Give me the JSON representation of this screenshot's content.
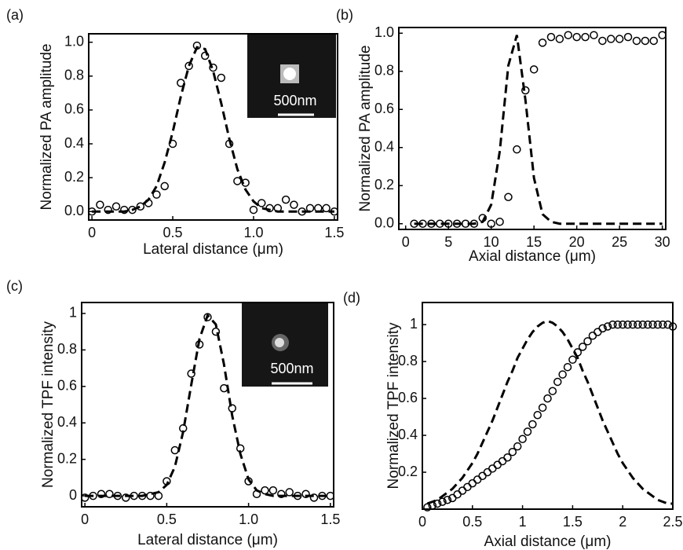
{
  "chart_data": [
    {
      "type": "scatter",
      "panel_label": "(a)",
      "xlabel": "Lateral distance (μm)",
      "ylabel": "Normalized PA amplitude",
      "inset_label": "500nm",
      "xlim": [
        -0.02,
        1.52
      ],
      "ylim": [
        -0.05,
        1.05
      ],
      "xticks": [
        0,
        0.5,
        {
          "value": 1,
          "label": "1.0"
        },
        1.5
      ],
      "yticks": [
        {
          "value": 0,
          "label": "0.0"
        },
        0.2,
        0.4,
        0.6,
        0.8,
        {
          "value": 1,
          "label": "1.0"
        }
      ],
      "x": [
        0,
        0.05,
        0.1,
        0.15,
        0.2,
        0.25,
        0.3,
        0.35,
        0.4,
        0.45,
        0.5,
        0.55,
        0.6,
        0.65,
        0.7,
        0.75,
        0.8,
        0.85,
        0.9,
        0.95,
        1.0,
        1.05,
        1.1,
        1.15,
        1.2,
        1.25,
        1.3,
        1.35,
        1.4,
        1.45,
        1.5
      ],
      "series": [
        {
          "kind": "markers",
          "color": "#000000",
          "values": [
            0.0,
            0.04,
            0.01,
            0.03,
            0.01,
            0.01,
            0.03,
            0.05,
            0.1,
            0.15,
            0.4,
            0.76,
            0.86,
            0.98,
            0.92,
            0.85,
            0.79,
            0.4,
            0.18,
            0.17,
            0.01,
            0.05,
            0.02,
            0.02,
            0.07,
            0.04,
            0.0,
            0.02,
            0.02,
            0.02,
            0.0
          ]
        },
        {
          "kind": "dashed",
          "color": "#000000",
          "values": [
            0,
            0,
            0,
            0,
            0,
            0.01,
            0.03,
            0.07,
            0.15,
            0.29,
            0.47,
            0.68,
            0.86,
            0.97,
            0.96,
            0.83,
            0.64,
            0.43,
            0.25,
            0.13,
            0.06,
            0.02,
            0.01,
            0,
            0,
            0,
            0,
            0,
            0,
            0,
            0
          ]
        }
      ]
    },
    {
      "type": "scatter",
      "panel_label": "(b)",
      "xlabel": "Axial distance (μm)",
      "ylabel": "Normalized PA amplitude",
      "xlim": [
        -0.8,
        30.4
      ],
      "ylim": [
        -0.03,
        1.03
      ],
      "xticks": [
        0,
        5,
        10,
        15,
        20,
        25,
        30
      ],
      "yticks": [
        {
          "value": 0,
          "label": "0.0"
        },
        0.2,
        0.4,
        0.6,
        0.8,
        {
          "value": 1,
          "label": "1.0"
        }
      ],
      "x": [
        1,
        2,
        3,
        4,
        5,
        6,
        7,
        8,
        9,
        10,
        11,
        12,
        13,
        14,
        15,
        16,
        17,
        18,
        19,
        20,
        21,
        22,
        23,
        24,
        25,
        26,
        27,
        28,
        29,
        30
      ],
      "series": [
        {
          "kind": "markers",
          "color": "#000000",
          "values": [
            0,
            0,
            0,
            0,
            0,
            0,
            0,
            0,
            0.03,
            0,
            0.01,
            0.14,
            0.39,
            0.7,
            0.81,
            0.95,
            0.98,
            0.97,
            0.99,
            0.98,
            0.98,
            0.99,
            0.96,
            0.97,
            0.97,
            0.98,
            0.96,
            0.96,
            0.96,
            0.99
          ]
        },
        {
          "kind": "dashed",
          "color": "#000000",
          "values": [
            0,
            0,
            0,
            0,
            0,
            0,
            0,
            0,
            0.01,
            0.1,
            0.38,
            0.83,
            0.99,
            0.65,
            0.24,
            0.05,
            0.01,
            0,
            0,
            0,
            0,
            0,
            0,
            0,
            0,
            0,
            0,
            0,
            0,
            0
          ]
        }
      ]
    },
    {
      "type": "scatter",
      "panel_label": "(c)",
      "xlabel": "Lateral distance (μm)",
      "ylabel": "Normalized TPF intensity",
      "inset_label": "500nm",
      "xlim": [
        -0.02,
        1.52
      ],
      "ylim": [
        -0.06,
        1.06
      ],
      "xticks": [
        0,
        0.5,
        {
          "value": 1,
          "label": "1.0"
        },
        1.5
      ],
      "yticks": [
        0,
        0.2,
        0.4,
        0.6,
        0.8,
        1
      ],
      "x": [
        0,
        0.05,
        0.1,
        0.15,
        0.2,
        0.25,
        0.3,
        0.35,
        0.4,
        0.45,
        0.5,
        0.55,
        0.6,
        0.65,
        0.7,
        0.75,
        0.8,
        0.85,
        0.9,
        0.95,
        1.0,
        1.05,
        1.1,
        1.15,
        1.2,
        1.25,
        1.3,
        1.35,
        1.4,
        1.45,
        1.5
      ],
      "series": [
        {
          "kind": "markers",
          "color": "#000000",
          "values": [
            -0.01,
            0,
            0.01,
            0.01,
            0,
            -0.01,
            0,
            0,
            0,
            0,
            0.08,
            0.25,
            0.37,
            0.67,
            0.83,
            0.98,
            0.9,
            0.59,
            0.48,
            0.26,
            0.08,
            0.01,
            0.03,
            0.03,
            0.01,
            0.02,
            0,
            0.01,
            -0.01,
            0,
            0
          ]
        },
        {
          "kind": "dashed",
          "color": "#000000",
          "values": [
            0,
            0,
            0,
            0,
            0,
            0,
            0,
            0,
            0.01,
            0.02,
            0.06,
            0.16,
            0.35,
            0.61,
            0.86,
            0.99,
            0.94,
            0.72,
            0.44,
            0.23,
            0.09,
            0.03,
            0.01,
            0,
            0,
            0,
            0,
            0,
            0,
            0,
            0
          ]
        }
      ]
    },
    {
      "type": "scatter",
      "panel_label": "(d)",
      "xlabel": "Axial distance (μm)",
      "ylabel": "Normalized TPF intensity",
      "xlim": [
        0,
        2.5
      ],
      "ylim": [
        0,
        1.12
      ],
      "xticks": [
        0,
        0.5,
        1,
        1.5,
        2,
        2.5
      ],
      "yticks": [
        0.2,
        0.4,
        0.6,
        0.8,
        1
      ],
      "x": [
        0.05,
        0.1,
        0.15,
        0.2,
        0.25,
        0.3,
        0.35,
        0.4,
        0.45,
        0.5,
        0.55,
        0.6,
        0.65,
        0.7,
        0.75,
        0.8,
        0.85,
        0.9,
        0.95,
        1.0,
        1.05,
        1.1,
        1.15,
        1.2,
        1.25,
        1.3,
        1.35,
        1.4,
        1.45,
        1.5,
        1.55,
        1.6,
        1.65,
        1.7,
        1.75,
        1.8,
        1.85,
        1.9,
        1.95,
        2.0,
        2.05,
        2.1,
        2.15,
        2.2,
        2.25,
        2.3,
        2.35,
        2.4,
        2.45,
        2.5
      ],
      "series": [
        {
          "kind": "markers",
          "color": "#000000",
          "values": [
            0.01,
            0.02,
            0.03,
            0.04,
            0.05,
            0.06,
            0.08,
            0.1,
            0.12,
            0.14,
            0.16,
            0.18,
            0.2,
            0.22,
            0.24,
            0.26,
            0.28,
            0.31,
            0.34,
            0.38,
            0.42,
            0.46,
            0.51,
            0.55,
            0.6,
            0.64,
            0.69,
            0.73,
            0.77,
            0.81,
            0.85,
            0.88,
            0.91,
            0.94,
            0.96,
            0.98,
            0.99,
            1,
            1,
            1,
            1,
            1,
            1,
            1,
            1,
            1,
            1,
            1,
            1,
            0.99
          ]
        },
        {
          "kind": "dashed",
          "color": "#000000",
          "values": [
            0.03,
            0.04,
            0.05,
            0.07,
            0.09,
            0.11,
            0.14,
            0.17,
            0.21,
            0.25,
            0.3,
            0.36,
            0.42,
            0.48,
            0.55,
            0.62,
            0.69,
            0.75,
            0.82,
            0.87,
            0.92,
            0.96,
            0.99,
            1.01,
            1.02,
            1.01,
            0.99,
            0.96,
            0.92,
            0.87,
            0.82,
            0.75,
            0.69,
            0.62,
            0.55,
            0.48,
            0.42,
            0.36,
            0.3,
            0.25,
            0.21,
            0.17,
            0.14,
            0.11,
            0.09,
            0.07,
            0.05,
            0.04,
            0.03,
            0.03
          ]
        }
      ]
    }
  ]
}
